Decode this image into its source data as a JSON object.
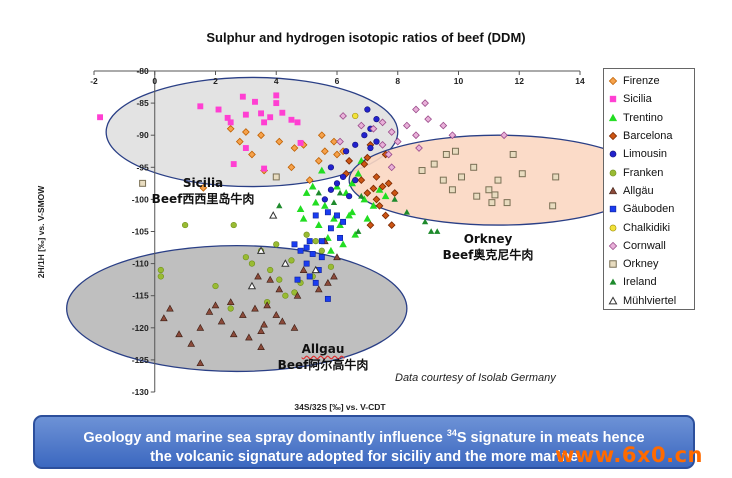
{
  "title": "Sulphur and hydrogen isotopic ratios of beef (DDM)",
  "chart_data": {
    "type": "scatter",
    "title": "Sulphur and hydrogen isotopic ratios of beef (DDM)",
    "xlabel": "34S/32S [‰] vs. V-CDT",
    "ylabel": "2H/1H [‰] vs. V-SMOW",
    "xlim": [
      -2,
      14
    ],
    "ylim": [
      -130,
      -80
    ],
    "x_ticks": [
      -2,
      0,
      2,
      4,
      6,
      8,
      10,
      12,
      14
    ],
    "y_ticks": [
      -80,
      -85,
      -90,
      -95,
      -100,
      -105,
      -110,
      -115,
      -120,
      -125,
      -130
    ],
    "grid": false,
    "legend_position": "right",
    "series": [
      {
        "name": "Firenze",
        "marker": "diamond",
        "color": "#f5a24c",
        "edge": "#c06000",
        "points": [
          [
            2.5,
            -89
          ],
          [
            3,
            -89.5
          ],
          [
            3.5,
            -90
          ],
          [
            4.1,
            -91
          ],
          [
            2.8,
            -91
          ],
          [
            4.6,
            -92
          ],
          [
            3.2,
            -93
          ],
          [
            5.5,
            -90
          ],
          [
            5.9,
            -91
          ],
          [
            5.6,
            -92.5
          ],
          [
            6.0,
            -93
          ],
          [
            5.4,
            -94
          ],
          [
            6.2,
            -92.5
          ],
          [
            5.1,
            -97
          ],
          [
            4.5,
            -95
          ],
          [
            3.6,
            -95.5
          ],
          [
            1.6,
            -98.2
          ],
          [
            4.9,
            -91.5
          ]
        ]
      },
      {
        "name": "Sicilia",
        "marker": "square",
        "color": "#ff3fd2",
        "edge": "#ff3fd2",
        "points": [
          [
            -1.8,
            -87.2
          ],
          [
            1.5,
            -85.5
          ],
          [
            2.1,
            -86
          ],
          [
            2.4,
            -87.3
          ],
          [
            2.5,
            -88
          ],
          [
            2.9,
            -84
          ],
          [
            3.0,
            -86.8
          ],
          [
            3.3,
            -84.8
          ],
          [
            3.5,
            -86.6
          ],
          [
            3.6,
            -88
          ],
          [
            3.8,
            -87.2
          ],
          [
            4.0,
            -85
          ],
          [
            4.2,
            -86.5
          ],
          [
            4.5,
            -87.6
          ],
          [
            4.7,
            -88
          ],
          [
            4.0,
            -83.8
          ],
          [
            3.0,
            -92
          ],
          [
            4.8,
            -91.2
          ],
          [
            3.6,
            -95.2
          ],
          [
            2.6,
            -94.5
          ]
        ]
      },
      {
        "name": "Trentino",
        "marker": "triangle",
        "color": "#22dd22",
        "edge": "#22dd22",
        "points": [
          [
            5,
            -99
          ],
          [
            5.3,
            -100.5
          ],
          [
            5.6,
            -101
          ],
          [
            5.9,
            -103
          ],
          [
            6.1,
            -104
          ],
          [
            6.3,
            -99
          ],
          [
            6.5,
            -97.5
          ],
          [
            6.7,
            -96
          ],
          [
            6.9,
            -100
          ],
          [
            6.5,
            -102
          ],
          [
            5.4,
            -104
          ],
          [
            5.7,
            -106
          ],
          [
            6.2,
            -107
          ],
          [
            6.6,
            -105.5
          ],
          [
            7.0,
            -103
          ],
          [
            7.2,
            -101
          ],
          [
            4.8,
            -101.5
          ],
          [
            4.9,
            -103
          ],
          [
            5.2,
            -98
          ],
          [
            6.0,
            -98
          ],
          [
            6.8,
            -94
          ],
          [
            5.5,
            -95.5
          ],
          [
            6.4,
            -102.5
          ],
          [
            5.8,
            -108
          ],
          [
            7.4,
            -98.5
          ],
          [
            7.6,
            -99.5
          ]
        ]
      },
      {
        "name": "Barcelona",
        "marker": "diamond",
        "color": "#cc5514",
        "edge": "#7a2800",
        "points": [
          [
            6.4,
            -94
          ],
          [
            7.0,
            -93.5
          ],
          [
            7.3,
            -96.5
          ],
          [
            7.5,
            -98
          ],
          [
            7.7,
            -97.5
          ],
          [
            7.4,
            -101
          ],
          [
            7.9,
            -99
          ],
          [
            7.1,
            -104
          ],
          [
            7.3,
            -100
          ],
          [
            6.8,
            -97
          ],
          [
            7.6,
            -102.5
          ],
          [
            7.1,
            -91.5
          ],
          [
            6.9,
            -94.5
          ],
          [
            7.6,
            -93
          ],
          [
            7.8,
            -104
          ],
          [
            7.2,
            -98.3
          ],
          [
            6.3,
            -96
          ],
          [
            7.0,
            -99
          ]
        ]
      },
      {
        "name": "Limousin",
        "marker": "circle",
        "color": "#2222cc",
        "edge": "#11117a",
        "points": [
          [
            5.8,
            -95
          ],
          [
            6.2,
            -96.5
          ],
          [
            6.6,
            -97
          ],
          [
            6.4,
            -99.5
          ],
          [
            6.9,
            -90
          ],
          [
            7.1,
            -92
          ],
          [
            7.3,
            -91
          ],
          [
            7.0,
            -86
          ],
          [
            7.3,
            -87.5
          ],
          [
            7.1,
            -89
          ],
          [
            6.6,
            -91.5
          ],
          [
            6.0,
            -97.5
          ],
          [
            5.8,
            -98.5
          ],
          [
            5.6,
            -100
          ],
          [
            6.3,
            -92.5
          ]
        ]
      },
      {
        "name": "Franken",
        "marker": "circle",
        "color": "#99bb33",
        "edge": "#6e8f1a",
        "points": [
          [
            0.2,
            -111
          ],
          [
            0.2,
            -112
          ],
          [
            1,
            -104
          ],
          [
            2.0,
            -113.5
          ],
          [
            2.5,
            -117
          ],
          [
            3.0,
            -109
          ],
          [
            3.2,
            -110
          ],
          [
            3.5,
            -108
          ],
          [
            3.8,
            -111
          ],
          [
            4.1,
            -112.5
          ],
          [
            4.3,
            -115
          ],
          [
            4.5,
            -109.5
          ],
          [
            5.2,
            -112
          ],
          [
            5.5,
            -108
          ],
          [
            5.8,
            -110.5
          ],
          [
            5.0,
            -105.5
          ],
          [
            4.8,
            -113
          ],
          [
            3.7,
            -116
          ],
          [
            4.6,
            -114.5
          ],
          [
            4.0,
            -107
          ],
          [
            5.3,
            -106.5
          ],
          [
            2.6,
            -104
          ]
        ]
      },
      {
        "name": "Allgäu",
        "marker": "triangle",
        "color": "#8b4a3a",
        "edge": "#3a1c12",
        "points": [
          [
            0.5,
            -117
          ],
          [
            0.3,
            -118.5
          ],
          [
            0.8,
            -121
          ],
          [
            1.5,
            -120
          ],
          [
            1.2,
            -122.5
          ],
          [
            1.5,
            -125.5
          ],
          [
            2.2,
            -119
          ],
          [
            2.9,
            -118
          ],
          [
            3.3,
            -117
          ],
          [
            2.5,
            -116
          ],
          [
            3.7,
            -116.5
          ],
          [
            4.0,
            -118
          ],
          [
            4.2,
            -119
          ],
          [
            3.4,
            -112
          ],
          [
            3.8,
            -112.5
          ],
          [
            4.1,
            -114
          ],
          [
            4.7,
            -115
          ],
          [
            3.1,
            -121.5
          ],
          [
            2.6,
            -121
          ],
          [
            3.5,
            -123
          ],
          [
            4.6,
            -120
          ],
          [
            5.7,
            -113
          ],
          [
            5.9,
            -112
          ],
          [
            6.0,
            -109
          ],
          [
            2.0,
            -116.5
          ],
          [
            3.6,
            -119.5
          ],
          [
            1.8,
            -117.5
          ],
          [
            4.9,
            -111
          ],
          [
            5.6,
            -106.5
          ],
          [
            5.4,
            -114
          ],
          [
            3.5,
            -120.5
          ]
        ]
      },
      {
        "name": "Gäuboden",
        "marker": "square",
        "color": "#1a3cf0",
        "edge": "#0a1e9a",
        "points": [
          [
            4.6,
            -107
          ],
          [
            5.1,
            -106.5
          ],
          [
            5.5,
            -106.5
          ],
          [
            5.0,
            -107.5
          ],
          [
            4.8,
            -108
          ],
          [
            5.2,
            -108.5
          ],
          [
            5.5,
            -109
          ],
          [
            5.0,
            -110
          ],
          [
            5.4,
            -111
          ],
          [
            5.1,
            -112
          ],
          [
            4.7,
            -112.5
          ],
          [
            5.3,
            -113
          ],
          [
            5.7,
            -115.5
          ],
          [
            5.7,
            -102
          ],
          [
            6.0,
            -102.5
          ],
          [
            6.2,
            -103.5
          ],
          [
            5.3,
            -102.5
          ],
          [
            5.8,
            -104.5
          ],
          [
            6.1,
            -106
          ]
        ]
      },
      {
        "name": "Chalkidiki",
        "marker": "circle",
        "color": "#f2e23a",
        "edge": "#9a8a00",
        "points": [
          [
            6.6,
            -87
          ]
        ]
      },
      {
        "name": "Cornwall",
        "marker": "diamond",
        "color": "#e8b0d8",
        "edge": "#9a4a8a",
        "points": [
          [
            6.2,
            -87
          ],
          [
            6.8,
            -88.5
          ],
          [
            7.2,
            -89
          ],
          [
            7.5,
            -88
          ],
          [
            7.8,
            -89.5
          ],
          [
            8.3,
            -88.5
          ],
          [
            8.6,
            -86
          ],
          [
            9.0,
            -87.5
          ],
          [
            8.6,
            -90
          ],
          [
            9.5,
            -88.5
          ],
          [
            8.0,
            -91
          ],
          [
            8.7,
            -92
          ],
          [
            9.8,
            -90
          ],
          [
            7.5,
            -91.5
          ],
          [
            7.7,
            -93
          ],
          [
            8.9,
            -85
          ],
          [
            7.8,
            -95
          ],
          [
            11.5,
            -90
          ],
          [
            6.1,
            -91
          ]
        ]
      },
      {
        "name": "Orkney",
        "marker": "square-open",
        "color": "#e8dcc0",
        "edge": "#7a7055",
        "points": [
          [
            -0.4,
            -97.5
          ],
          [
            4.0,
            -96.5
          ],
          [
            8.8,
            -95.5
          ],
          [
            9.2,
            -94.5
          ],
          [
            9.6,
            -93
          ],
          [
            9.9,
            -92.5
          ],
          [
            9.5,
            -97
          ],
          [
            9.8,
            -98.5
          ],
          [
            10.1,
            -96.5
          ],
          [
            10.5,
            -95
          ],
          [
            10.6,
            -99.5
          ],
          [
            11.0,
            -98.5
          ],
          [
            11.2,
            -99.3
          ],
          [
            11.3,
            -97
          ],
          [
            11.8,
            -93
          ],
          [
            11.6,
            -100.5
          ],
          [
            11.1,
            -100.5
          ],
          [
            12.1,
            -96
          ],
          [
            13.2,
            -96.5
          ],
          [
            13.1,
            -101
          ]
        ]
      },
      {
        "name": "Ireland",
        "marker": "triangle-small",
        "color": "#1e8a2c",
        "edge": "#1e8a2c",
        "points": [
          [
            4.1,
            -101
          ],
          [
            6.1,
            -99
          ],
          [
            6.8,
            -99.5
          ],
          [
            7.9,
            -100
          ],
          [
            8.3,
            -102
          ],
          [
            8.9,
            -103.5
          ],
          [
            9.1,
            -105
          ],
          [
            9.3,
            -105
          ],
          [
            5.4,
            -99
          ],
          [
            6.7,
            -105
          ],
          [
            5.9,
            -100.5
          ]
        ]
      },
      {
        "name": "Mühlviertel",
        "marker": "triangle-open",
        "color": "#ffffff",
        "edge": "#333333",
        "points": [
          [
            3.2,
            -113.5
          ],
          [
            3.9,
            -102.5
          ],
          [
            3.5,
            -108
          ],
          [
            4.3,
            -110
          ],
          [
            5.3,
            -111
          ]
        ]
      }
    ],
    "ellipses": [
      {
        "label": "Sicilia",
        "cx": 3.2,
        "cy": -89.5,
        "rx": 4.8,
        "ry": 8.5,
        "fill": "#e0e0e0",
        "stroke": "#2a3f86"
      },
      {
        "label": "Orkney",
        "cx": 11.3,
        "cy": -97,
        "rx": 4.9,
        "ry": 7.0,
        "fill": "#fbd7c2",
        "stroke": "#2a3f86"
      },
      {
        "label": "Allgau",
        "cx": 2.7,
        "cy": -117,
        "rx": 5.6,
        "ry": 9.8,
        "fill": "#b8b8b8",
        "stroke": "#2a3f86"
      }
    ]
  },
  "annotations": {
    "sicilia_line1": "Sicilia",
    "sicilia_line2": "Beef西西里岛牛肉",
    "orkney_line1": "Orkney",
    "orkney_line2": "Beef奥克尼牛肉",
    "allgau_line1": "Allgau",
    "allgau_line2": "Beef阿尔高牛肉",
    "credit": "Data courtesy of Isolab Germany"
  },
  "banner": {
    "line1_prefix": "Geology and marine sea spray dominantly influence ",
    "line1_sup": "34",
    "line1_suffix": "S signature in meats hence",
    "line2": "the volcanic signature adopted for siciliy and the more marine"
  },
  "watermark": "www.6x0.cn"
}
